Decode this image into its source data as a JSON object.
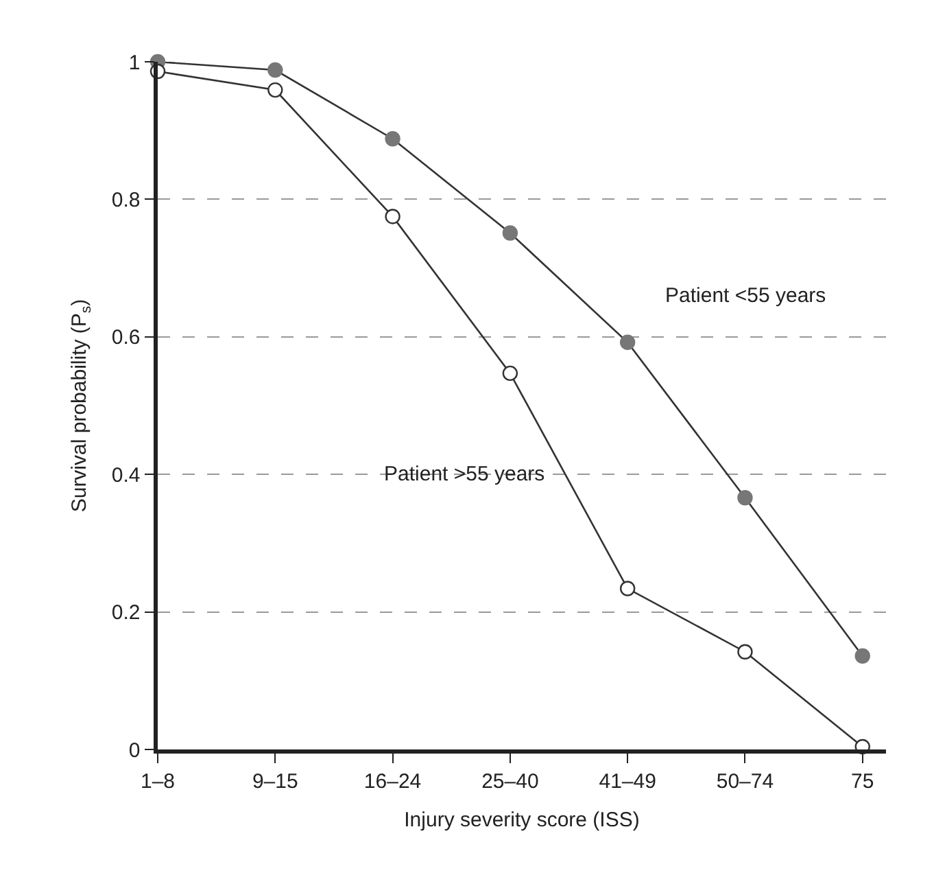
{
  "chart_data": {
    "type": "line",
    "xlabel": "Injury severity score (ISS)",
    "ylabel": "Survival probability (P$_{s}$)",
    "categories": [
      "1–8",
      "9–15",
      "16–24",
      "25–40",
      "41–49",
      "50–74",
      "75"
    ],
    "series": [
      {
        "name": "Patient <55 years",
        "color": "#777777",
        "values": [
          1.0,
          0.988,
          0.888,
          0.751,
          0.592,
          0.366,
          0.136
        ]
      },
      {
        "name": "Patient >55 years",
        "color": "#ffffff",
        "values": [
          0.986,
          0.959,
          0.775,
          0.547,
          0.234,
          0.142,
          0.004
        ]
      }
    ],
    "ylim": [
      0,
      1
    ],
    "yticks": [
      0,
      0.2,
      0.4,
      0.6,
      0.8,
      1
    ],
    "grid": "y",
    "marker": "circle",
    "line_style": "solid",
    "legend": false
  }
}
